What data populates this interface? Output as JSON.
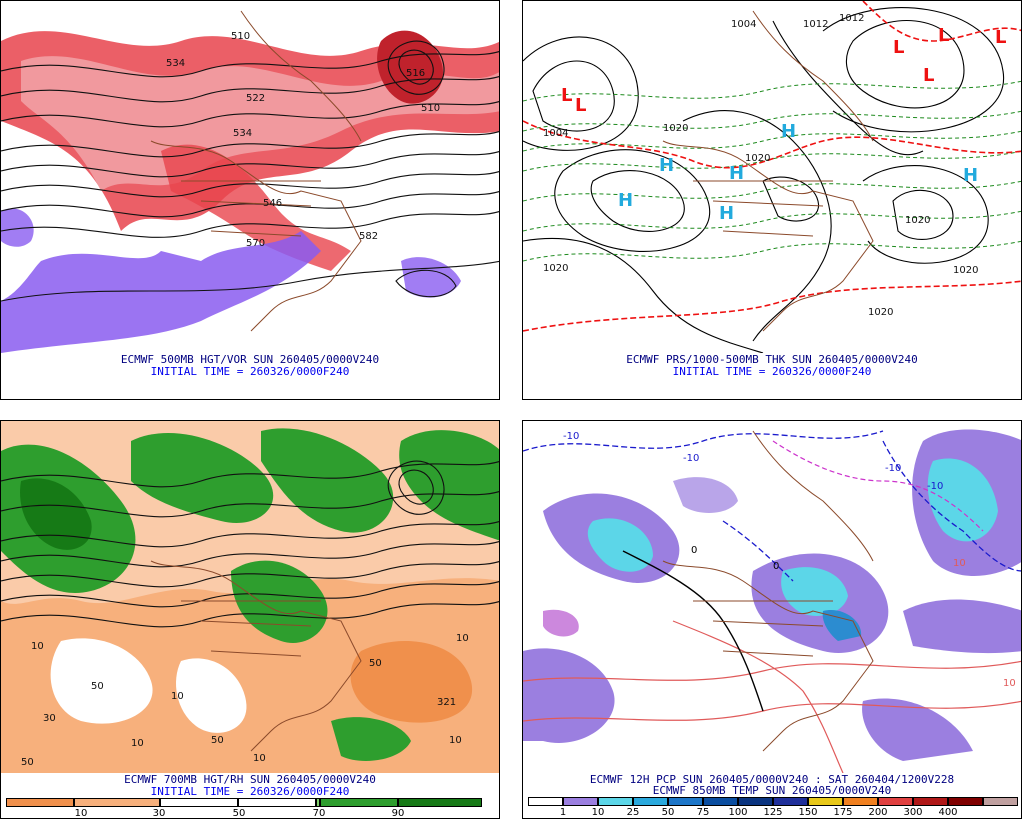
{
  "panels": [
    {
      "id": "500mb",
      "caption": "ECMWF 500MB HGT/VOR SUN 260405/0000V240",
      "initial_time": "INITIAL TIME = 260326/0000F240",
      "contour_labels": [
        "534",
        "522",
        "534",
        "510",
        "510",
        "516",
        "582",
        "546",
        "570"
      ],
      "colors": {
        "fill": "#e8434c",
        "fill_light": "#f2a0a4",
        "neg": "#8a5cf0",
        "contour": "#111111",
        "border": "#8b4a2b"
      }
    },
    {
      "id": "prs",
      "caption": "ECMWF PRS/1000-500MB THK SUN 260405/0000V240",
      "initial_time": "INITIAL TIME = 260326/0000F240",
      "contour_labels": [
        "1004",
        "1012",
        "1012",
        "1004",
        "1020",
        "1020",
        "1020",
        "1020",
        "1020",
        "1020"
      ],
      "highs": [
        "H",
        "H",
        "H",
        "H",
        "H",
        "H"
      ],
      "lows": [
        "L",
        "L",
        "L",
        "L",
        "L",
        "L"
      ],
      "colors": {
        "isobar": "#000000",
        "thk": "#1d8a1d",
        "thk_warm": "#ee1111",
        "high": "#22aadd",
        "low": "#ee1111",
        "border": "#8b4a2b"
      }
    },
    {
      "id": "700mb",
      "caption": "ECMWF 700MB HGT/RH SUN 260405/0000V240",
      "initial_time": "INITIAL TIME = 260326/0000F240",
      "contour_labels": [
        "321",
        "10",
        "10",
        "50",
        "10",
        "50",
        "10",
        "50",
        "10",
        "10",
        "50",
        "30"
      ],
      "colors": {
        "dry": "#f0904c",
        "moist": "#2e9e2e",
        "moist_dark": "#167a16",
        "contour": "#111111",
        "border": "#8b4a2b"
      },
      "legend": {
        "swatches": [
          "#f0904c",
          "#f7b07c",
          "#ffffff",
          "#ffffff",
          "#7fcf6a",
          "#2e9e2e",
          "#167a16"
        ],
        "ticks": [
          "10",
          "30",
          "50",
          "70",
          "90"
        ]
      }
    },
    {
      "id": "pcp",
      "caption": "ECMWF 12H PCP SUN 260405/0000V240 : SAT 260404/1200V228",
      "caption2": "ECMWF 850MB TEMP SUN 260405/0000V240",
      "contour_labels": [
        "-10",
        "-10",
        "-10",
        "-10",
        "10",
        "10",
        "0",
        "0"
      ],
      "colors": {
        "light": "#9b7fe0",
        "med": "#5cd6e8",
        "heavy": "#2c8cd0",
        "cold": "#1a1acc",
        "warm": "#e05a5a",
        "zero": "#000000",
        "mag": "#cc33cc",
        "border": "#8b4a2b"
      },
      "legend": {
        "swatches": [
          "#ffffff",
          "#9b7fe0",
          "#5cd6e8",
          "#2aa9dd",
          "#1d76c8",
          "#0b4ea0",
          "#0a3480",
          "#1f2f9a",
          "#e8c81a",
          "#f08020",
          "#e04040",
          "#b01818",
          "#800000",
          "#c0a0a0"
        ],
        "ticks": [
          "1",
          "10",
          "25",
          "50",
          "75",
          "100",
          "125",
          "150",
          "175",
          "200",
          "300",
          "400"
        ]
      }
    }
  ]
}
